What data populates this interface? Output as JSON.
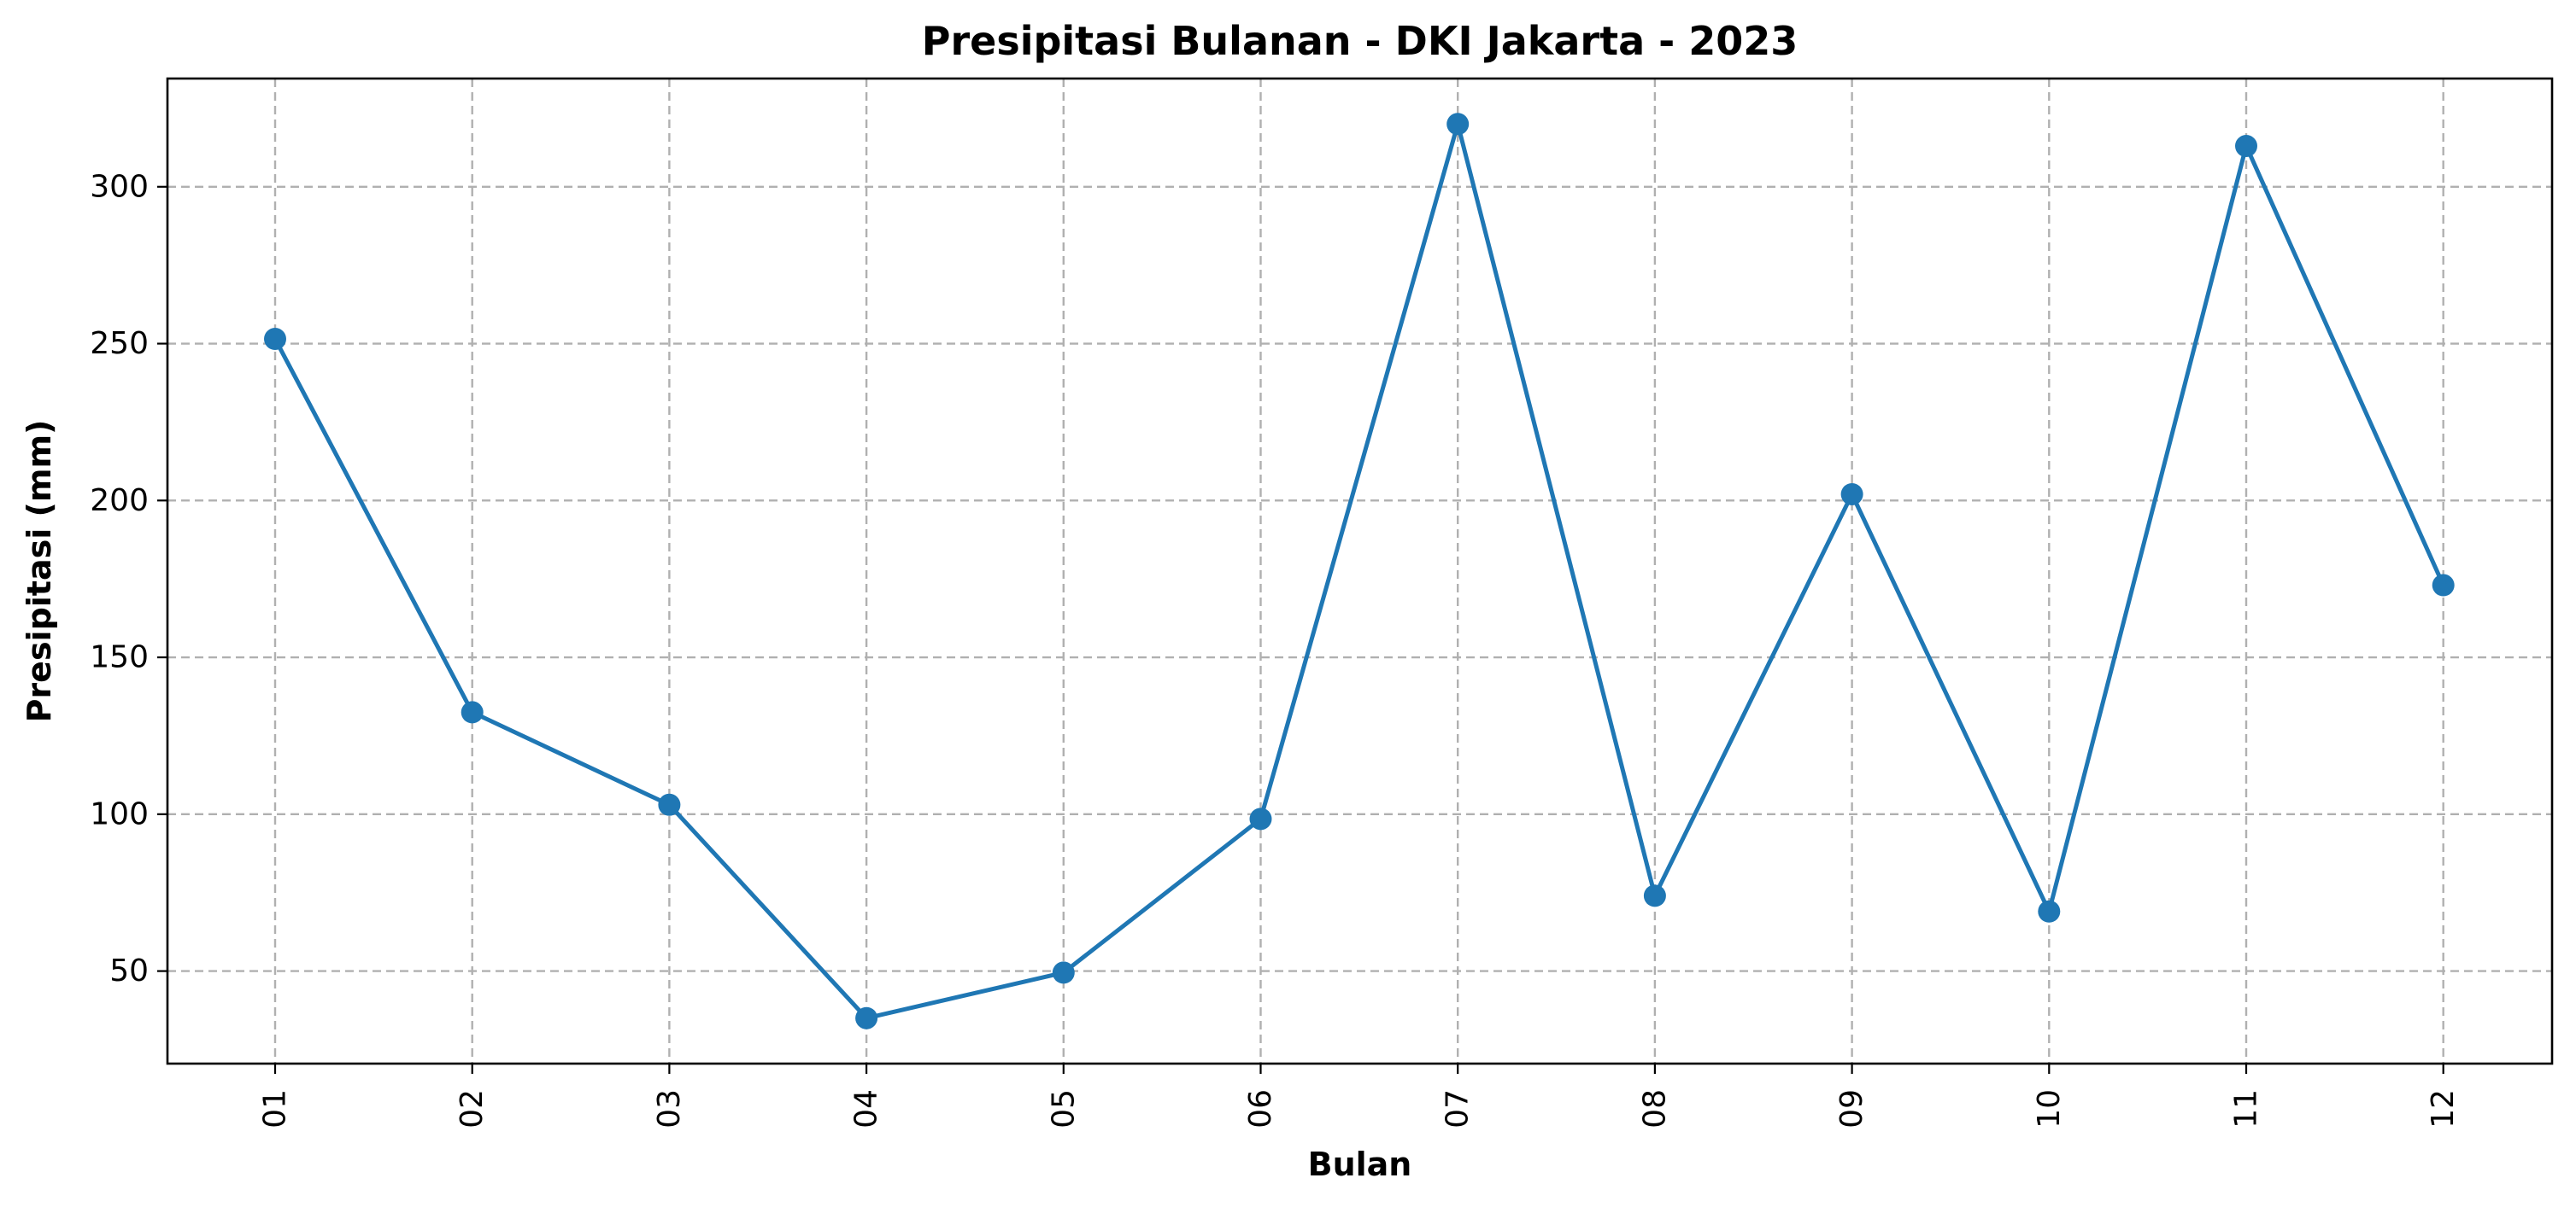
{
  "chart_data": {
    "type": "line",
    "title": "Presipitasi Bulanan - DKI Jakarta - 2023",
    "xlabel": "Bulan",
    "ylabel": "Presipitasi (mm)",
    "categories": [
      "01",
      "02",
      "03",
      "04",
      "05",
      "06",
      "07",
      "08",
      "09",
      "10",
      "11",
      "12"
    ],
    "series": [
      {
        "values": [
          251.5,
          132.5,
          103,
          35,
          49.5,
          98.5,
          320,
          74,
          202,
          69,
          313,
          173
        ],
        "color": "#1f77b4",
        "marker": "circle"
      }
    ],
    "yticks": [
      50,
      100,
      150,
      200,
      250,
      300
    ],
    "ylim": [
      20.5,
      334.5
    ],
    "grid": true,
    "x_tick_rotation": "vertical"
  }
}
